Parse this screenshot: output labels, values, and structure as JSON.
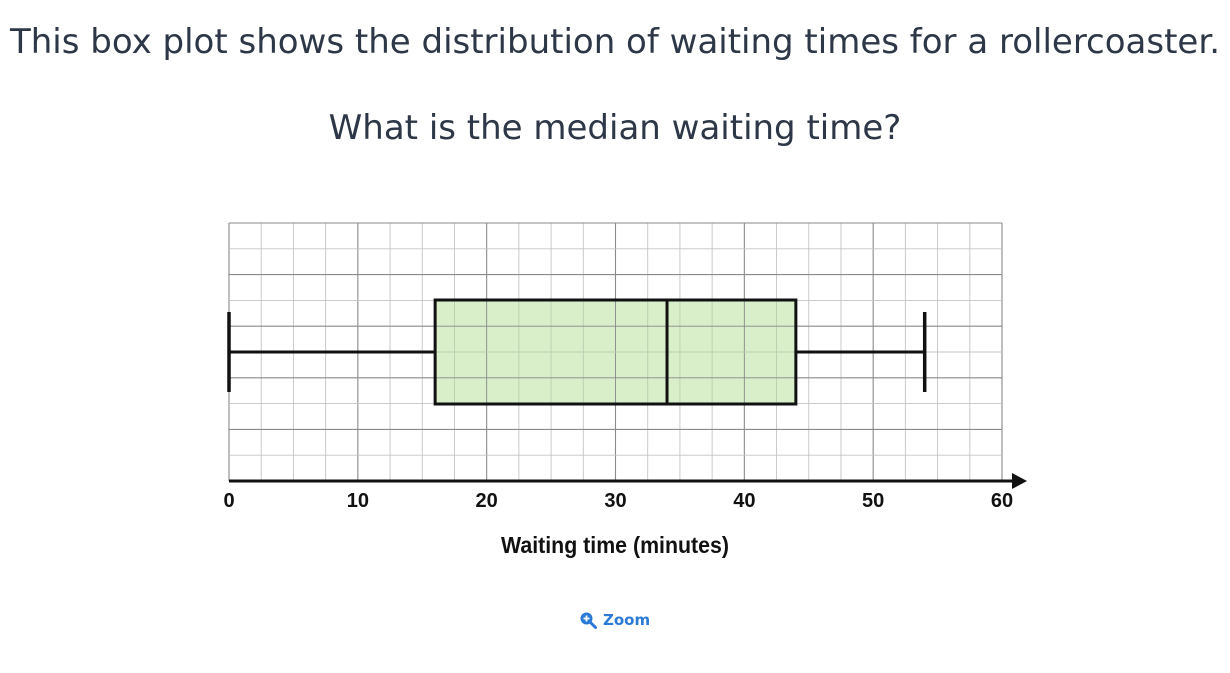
{
  "question": {
    "line1": "This box plot shows the distribution of waiting times for a rollercoaster.",
    "line2": "What is the median waiting time?"
  },
  "zoom": {
    "label": "Zoom",
    "icon": "zoom-in-icon"
  },
  "colors": {
    "box_fill": "#d4edc4",
    "zoom_accent": "#2b7bd6",
    "text": "#2d3748"
  },
  "chart_data": {
    "type": "box",
    "xlabel": "Waiting time (minutes)",
    "xlim": [
      0,
      60
    ],
    "ticks": [
      0,
      10,
      20,
      30,
      40,
      50,
      60
    ],
    "tick_labels": [
      "0",
      "10",
      "20",
      "30",
      "40",
      "50",
      "60"
    ],
    "grid": true,
    "box": {
      "min": 0,
      "q1": 16,
      "median": 34,
      "q3": 44,
      "max": 54
    }
  }
}
